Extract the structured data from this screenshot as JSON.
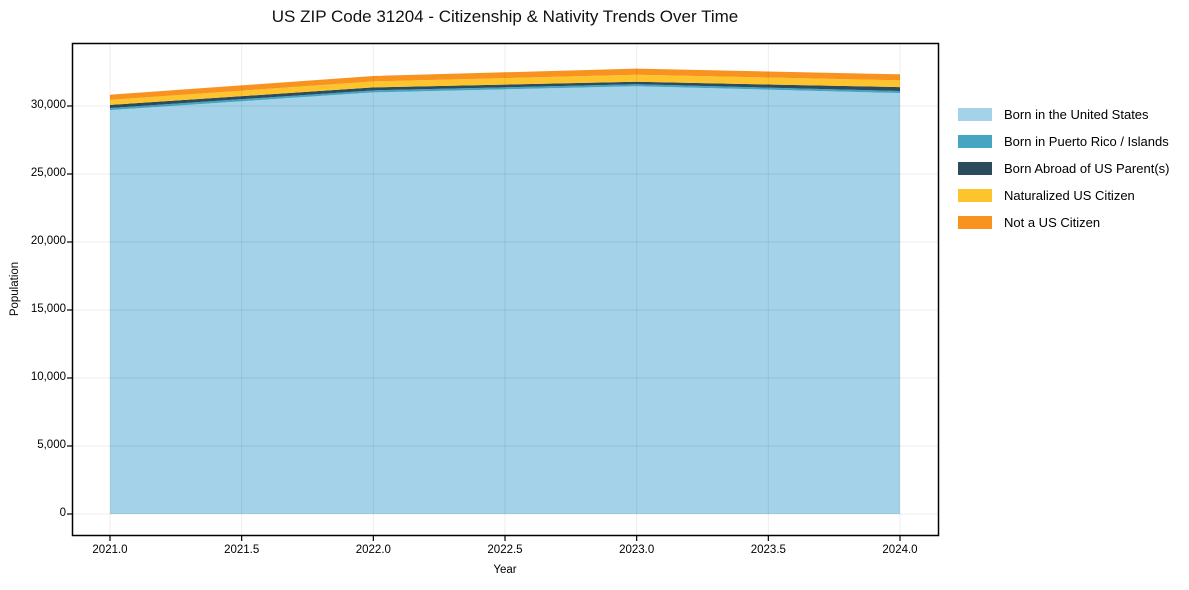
{
  "title": "US ZIP Code 31204 - Citizenship & Nativity Trends Over Time",
  "chart_data": {
    "type": "area",
    "stacked": true,
    "title": "US ZIP Code 31204 - Citizenship & Nativity Trends Over Time",
    "xlabel": "Year",
    "ylabel": "Population",
    "x": [
      2021,
      2022,
      2023,
      2024
    ],
    "series": [
      {
        "name": "Born in the United States",
        "color": "#a4d2e8",
        "values": [
          29700,
          31000,
          31450,
          30950
        ]
      },
      {
        "name": "Born in Puerto Rico / Islands",
        "color": "#45a5c2",
        "values": [
          150,
          150,
          150,
          150
        ]
      },
      {
        "name": "Born Abroad of US Parent(s)",
        "color": "#2c4b5d",
        "values": [
          230,
          220,
          180,
          290
        ]
      },
      {
        "name": "Naturalized US Citizen",
        "color": "#fdc42e",
        "values": [
          370,
          440,
          520,
          500
        ]
      },
      {
        "name": "Not a US Citizen",
        "color": "#f7931e",
        "values": [
          380,
          400,
          450,
          440
        ]
      }
    ],
    "xticks": [
      2021.0,
      2021.5,
      2022.0,
      2022.5,
      2023.0,
      2023.5,
      2024.0
    ],
    "xtick_labels": [
      "2021.0",
      "2021.5",
      "2022.0",
      "2022.5",
      "2023.0",
      "2023.5",
      "2024.0"
    ],
    "yticks": [
      0,
      5000,
      10000,
      15000,
      20000,
      25000,
      30000
    ],
    "ytick_labels": [
      "0",
      "5,000",
      "10,000",
      "15,000",
      "20,000",
      "25,000",
      "30,000"
    ],
    "xlim": [
      2020.86,
      2024.14
    ],
    "ylim": [
      -1640,
      34430
    ],
    "grid": true,
    "legend_position": "right-outside"
  },
  "style_colors": {
    "grid": "rgba(0,0,0,0.07)",
    "frame": "#000000",
    "background": "#ffffff",
    "text": "#111111"
  }
}
